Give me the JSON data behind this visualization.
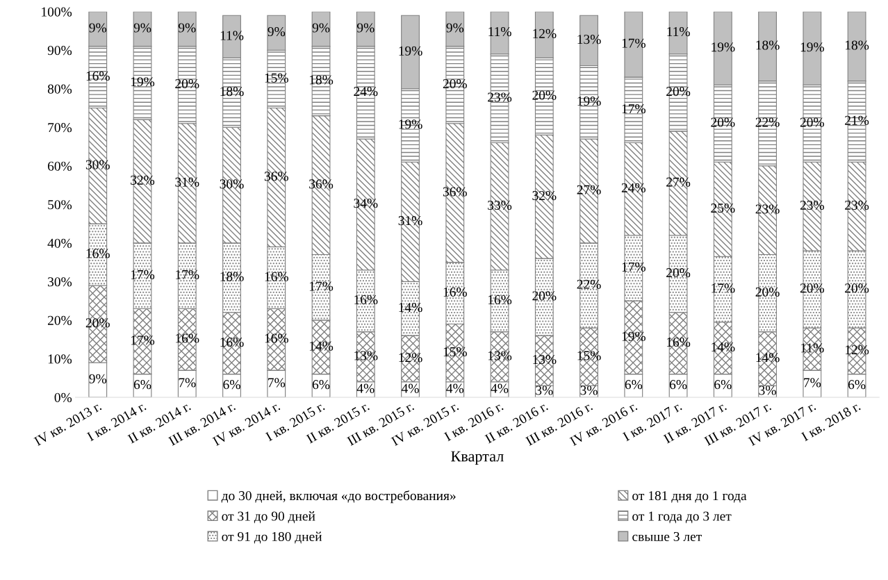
{
  "chart_data": {
    "type": "bar",
    "stacked": true,
    "xlabel": "Квартал",
    "categories": [
      "IV кв. 2013 г.",
      "I кв. 2014 г.",
      "II кв. 2014 г.",
      "III кв. 2014 г.",
      "IV кв. 2014 г.",
      "I кв. 2015 г.",
      "II кв. 2015 г.",
      "III кв. 2015 г.",
      "IV кв. 2015 г.",
      "I кв. 2016 г.",
      "II кв. 2016 г.",
      "III кв. 2016 г.",
      "IV кв. 2016 г.",
      "I кв. 2017 г.",
      "II кв. 2017 г.",
      "III кв. 2017 г.",
      "IV кв. 2017 г.",
      "I кв. 2018 г."
    ],
    "series": [
      {
        "name": "до 30 дней, включая «до востребования»",
        "color": "#ffffff",
        "values": [
          9,
          6,
          7,
          6,
          7,
          6,
          4,
          4,
          4,
          4,
          3,
          3,
          6,
          6,
          6,
          3,
          7,
          6
        ],
        "value_labels": [
          "9%",
          "6%",
          "7%",
          "6%",
          "7%",
          "6%",
          "4%",
          "4%",
          "4%",
          "4%",
          "3%",
          "3%",
          "6%",
          "6%",
          "6%",
          "3%",
          "7%",
          "6%"
        ]
      },
      {
        "name": "от 31 до 90 дней",
        "color": "#7f7f7f",
        "values": [
          20,
          17,
          16,
          16,
          16,
          14,
          13,
          12,
          15,
          13,
          13,
          15,
          19,
          16,
          13.5,
          14,
          11,
          12
        ],
        "value_labels": [
          "20%",
          "17%",
          "16%",
          "16%",
          "16%",
          "14%",
          "13%",
          "12%",
          "15%",
          "13%",
          "13%",
          "15%",
          "19%",
          "16%",
          "14%",
          "14%",
          "11%",
          "12%"
        ]
      },
      {
        "name": "от 91 до 180 дней",
        "color": "#7f7f7f",
        "values": [
          16,
          17,
          17,
          18,
          16,
          17,
          16,
          14,
          16,
          16,
          20,
          22,
          17,
          20,
          17,
          20,
          20,
          20
        ],
        "value_labels": [
          "16%",
          "17%",
          "17%",
          "18%",
          "16%",
          "17%",
          "16%",
          "14%",
          "16%",
          "16%",
          "20%",
          "22%",
          "17%",
          "20%",
          "17%",
          "20%",
          "20%",
          "20%"
        ]
      },
      {
        "name": "от 181 дня до 1 года",
        "color": "#7f7f7f",
        "values": [
          30,
          32,
          31,
          30,
          36,
          36,
          34,
          31,
          36,
          33,
          32,
          27,
          24,
          27,
          24.5,
          23,
          23,
          23
        ],
        "value_labels": [
          "30%",
          "32%",
          "31%",
          "30%",
          "36%",
          "36%",
          "34%",
          "31%",
          "36%",
          "33%",
          "32%",
          "27%",
          "24%",
          "27%",
          "25%",
          "23%",
          "23%",
          "23%"
        ]
      },
      {
        "name": "от 1 года до 3 лет",
        "color": "#7f7f7f",
        "values": [
          16,
          19,
          20,
          18,
          15,
          18,
          24,
          19,
          20,
          23,
          20,
          19,
          17,
          20,
          20,
          22,
          20,
          21
        ],
        "value_labels": [
          "16%",
          "19%",
          "20%",
          "18%",
          "15%",
          "18%",
          "24%",
          "19%",
          "20%",
          "23%",
          "20%",
          "19%",
          "17%",
          "20%",
          "20%",
          "22%",
          "20%",
          "21%"
        ]
      },
      {
        "name": "свыше 3 лет",
        "color": "#bfbfbf",
        "values": [
          9,
          9,
          9,
          11,
          9,
          9,
          9,
          19,
          9,
          11,
          12,
          13,
          17,
          11,
          19,
          18,
          19,
          18
        ],
        "value_labels": [
          "9%",
          "9%",
          "9%",
          "11%",
          "9%",
          "9%",
          "9%",
          "19%",
          "9%",
          "11%",
          "12%",
          "13%",
          "17%",
          "11%",
          "19%",
          "18%",
          "19%",
          "18%"
        ]
      }
    ],
    "ylim": [
      0,
      100
    ],
    "yticks": [
      {
        "value": 0,
        "label": "0%"
      },
      {
        "value": 10,
        "label": "10%"
      },
      {
        "value": 20,
        "label": "20%"
      },
      {
        "value": 30,
        "label": "30%"
      },
      {
        "value": 40,
        "label": "40%"
      },
      {
        "value": 50,
        "label": "50%"
      },
      {
        "value": 60,
        "label": "60%"
      },
      {
        "value": 70,
        "label": "70%"
      },
      {
        "value": 80,
        "label": "80%"
      },
      {
        "value": 90,
        "label": "90%"
      },
      {
        "value": 100,
        "label": "100%"
      }
    ],
    "grid": false,
    "legend": "bottom"
  }
}
